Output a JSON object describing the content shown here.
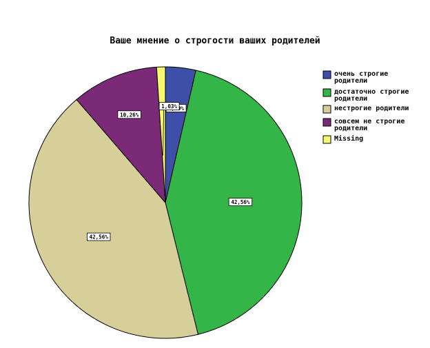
{
  "chart_data": {
    "type": "pie",
    "title": "Ваше мнение о строгости ваших родителей",
    "legend_position": "right",
    "slices": [
      {
        "label": [
          "очень строгие",
          "родители"
        ],
        "value": 3.59,
        "value_label": "3,59%",
        "color": "#3D4FA8"
      },
      {
        "label": [
          "достаточно строгие",
          "родители"
        ],
        "value": 42.56,
        "value_label": "42,56%",
        "color": "#33B548"
      },
      {
        "label": [
          "нестрогие родители"
        ],
        "value": 42.56,
        "value_label": "42,56%",
        "color": "#D6CF9A"
      },
      {
        "label": [
          "совсем не строгие",
          "родители"
        ],
        "value": 10.26,
        "value_label": "10,26%",
        "color": "#7B2A78"
      },
      {
        "label": [
          "Missing"
        ],
        "value": 1.03,
        "value_label": "1,03%",
        "color": "#F9F871"
      }
    ]
  }
}
